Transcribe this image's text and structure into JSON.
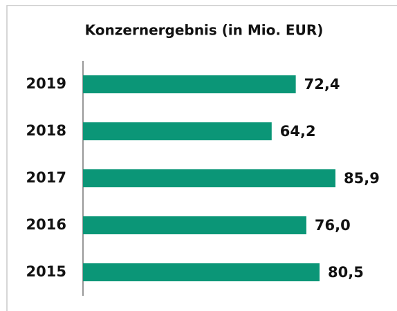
{
  "chart_data": {
    "type": "bar",
    "orientation": "horizontal",
    "title": "Konzernergebnis (in Mio. EUR)",
    "categories": [
      "2019",
      "2018",
      "2017",
      "2016",
      "2015"
    ],
    "values": [
      72.4,
      64.2,
      85.9,
      76.0,
      80.5
    ],
    "value_labels": [
      "72,4",
      "64,2",
      "85,9",
      "76,0",
      "80,5"
    ],
    "color": "#0b9677"
  }
}
